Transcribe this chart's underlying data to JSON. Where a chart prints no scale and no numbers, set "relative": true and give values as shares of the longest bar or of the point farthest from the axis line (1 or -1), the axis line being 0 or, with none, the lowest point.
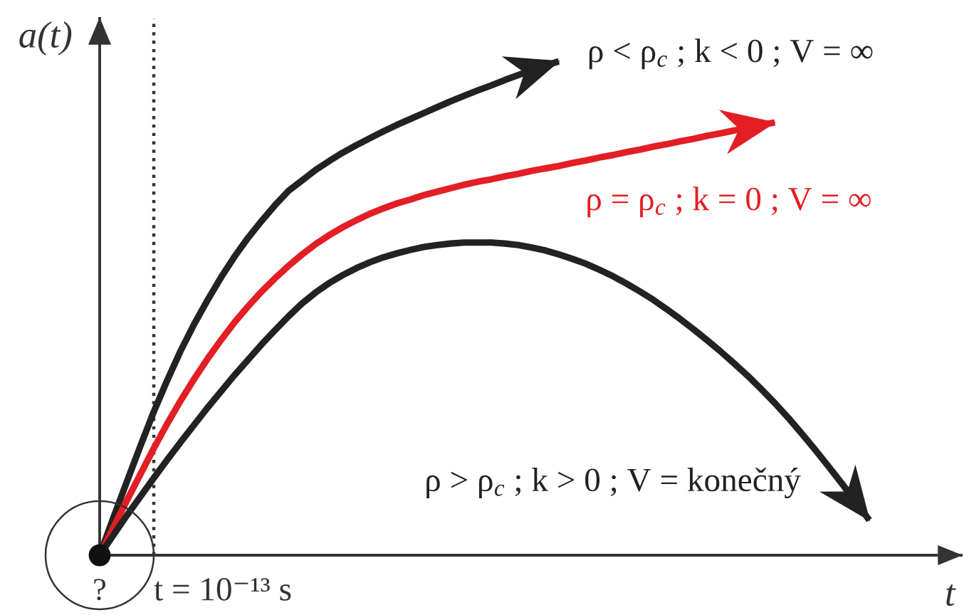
{
  "chart_data": {
    "type": "line",
    "relative": true,
    "xlabel": "t",
    "ylabel": "a(t)",
    "categories": [
      null,
      null,
      null,
      null,
      null,
      null,
      null,
      null,
      null,
      null,
      null,
      null,
      null,
      null,
      null,
      null,
      null,
      null,
      null,
      null,
      null,
      null,
      null,
      null,
      null,
      null,
      null,
      null,
      null,
      null,
      null,
      null,
      null,
      null,
      null,
      null,
      null,
      null,
      null,
      null,
      null,
      null,
      null,
      null,
      null,
      null,
      null,
      null,
      null,
      null,
      null,
      null,
      null,
      null,
      null,
      null,
      null,
      null
    ],
    "series": [
      {
        "name": "ρ < ρ$_{c}$ ; k < 0 ; V = ∞",
        "color": "#222222",
        "values": [
          0,
          0.075,
          0.148,
          0.22,
          0.29,
          0.354,
          0.414,
          0.468,
          0.517,
          0.563,
          0.605,
          0.643,
          0.677,
          0.709,
          0.738,
          0.759,
          0.78,
          0.798,
          0.815,
          0.83,
          0.844,
          0.858,
          0.871,
          0.883,
          0.895,
          0.907,
          0.919,
          0.93,
          0.941,
          0.951,
          0.962,
          0.972,
          0.981,
          0.991,
          1,
          null,
          null,
          null,
          null,
          null,
          null,
          null,
          null,
          null,
          null,
          null,
          null,
          null,
          null,
          null,
          null,
          null,
          null,
          null,
          null,
          null,
          null,
          null
        ]
      },
      {
        "name": "ρ = ρ$_{c}$ ; k = 0 ; V = ∞",
        "color": "#e31e24",
        "values": [
          0,
          0.055,
          0.11,
          0.163,
          0.216,
          0.266,
          0.313,
          0.357,
          0.398,
          0.436,
          0.472,
          0.504,
          0.534,
          0.561,
          0.586,
          0.609,
          0.63,
          0.648,
          0.664,
          0.678,
          0.691,
          0.702,
          0.712,
          0.72,
          0.729,
          0.736,
          0.743,
          0.75,
          0.756,
          0.761,
          0.767,
          0.772,
          0.778,
          0.783,
          0.788,
          0.794,
          0.799,
          0.805,
          0.81,
          0.816,
          0.821,
          0.827,
          0.832,
          0.838,
          0.843,
          0.849,
          0.854,
          0.86,
          0.865,
          0.871,
          0.876,
          null,
          null,
          null,
          null,
          null,
          null,
          null
        ]
      },
      {
        "name": "ρ > ρ$_{c}$ ; k > 0 ; V = konečný",
        "color": "#222222",
        "values": [
          0,
          0.04,
          0.08,
          0.118,
          0.156,
          0.193,
          0.229,
          0.264,
          0.299,
          0.332,
          0.365,
          0.396,
          0.427,
          0.456,
          0.484,
          0.51,
          0.532,
          0.551,
          0.567,
          0.581,
          0.593,
          0.603,
          0.611,
          0.618,
          0.624,
          0.628,
          0.631,
          0.633,
          0.633,
          0.633,
          0.631,
          0.628,
          0.623,
          0.617,
          0.609,
          0.6,
          0.59,
          0.578,
          0.565,
          0.55,
          0.534,
          0.517,
          0.498,
          0.478,
          0.457,
          0.435,
          0.412,
          0.388,
          0.363,
          0.336,
          0.308,
          0.278,
          0.246,
          0.213,
          0.179,
          0.144,
          0.107,
          0.071
        ]
      }
    ],
    "annotations": [
      "?",
      "t = 10⁻¹³ s"
    ]
  }
}
